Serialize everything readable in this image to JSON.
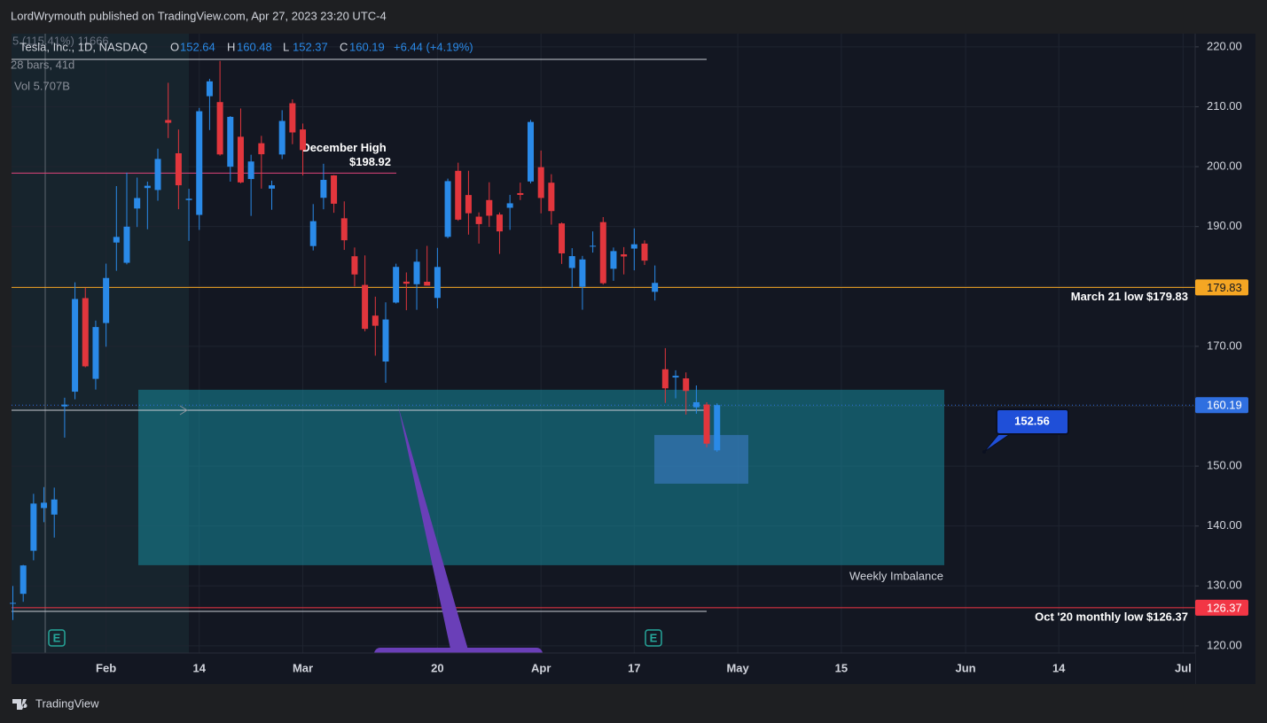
{
  "header": "LordWrymouth published on TradingView.com, Apr 27, 2023 23:20 UTC-4",
  "footer": "TradingView",
  "chart_data": {
    "type": "candlestick",
    "legend": {
      "symbol": "Tesla, Inc., 1D, NASDAQ",
      "fields": [
        {
          "key": "O",
          "value": 152.64
        },
        {
          "key": "H",
          "value": 160.48
        },
        {
          "key": "L",
          "value": 152.37
        },
        {
          "key": "C",
          "value": 160.19
        }
      ],
      "change": "+6.44 (+4.19%)",
      "measure": "5 (115.41%) 11666",
      "bars": "28 bars, 41d",
      "volume": "Vol 5.707B"
    },
    "categories": [
      null,
      null,
      null,
      null,
      null,
      null,
      null,
      null,
      null,
      "Feb",
      null,
      null,
      null,
      null,
      null,
      null,
      null,
      null,
      "14",
      null,
      null,
      null,
      null,
      null,
      null,
      null,
      null,
      null,
      "Mar",
      null,
      null,
      null,
      null,
      null,
      null,
      null,
      null,
      null,
      null,
      null,
      null,
      "20",
      null,
      null,
      null,
      null,
      null,
      null,
      null,
      null,
      null,
      "Apr",
      null,
      null,
      null,
      null,
      null,
      null,
      null,
      null,
      "17",
      null,
      null,
      null,
      null,
      null,
      null,
      null,
      null,
      null,
      "May",
      null,
      null,
      null,
      null,
      null,
      null,
      null,
      null,
      null,
      "15",
      null,
      null,
      null,
      null,
      null,
      null,
      null,
      null,
      null,
      null,
      null,
      "Jun",
      null,
      null,
      null,
      null,
      null,
      null,
      null,
      null,
      "14",
      null,
      null,
      null,
      null,
      null,
      null,
      null,
      null,
      null,
      null,
      null,
      "Jul",
      null
    ],
    "open": [
      127.13,
      128.68,
      135.87,
      143.0,
      141.91,
      159.97,
      162.43,
      178.05,
      164.57,
      173.89,
      187.33,
      183.95,
      193.01,
      196.43,
      196.1,
      207.78,
      202.23,
      194.42,
      191.94,
      211.76,
      210.78,
      199.99,
      204.99,
      197.93,
      203.91,
      196.33,
      202.03,
      210.59,
      206.21,
      186.74,
      194.8,
      198.54,
      191.38,
      185.04,
      180.25,
      175.13,
      167.46,
      177.31,
      180.8,
      180.37,
      180.78,
      178.08,
      188.28,
      199.3,
      195.26,
      191.65,
      194.42,
      192.0,
      193.13,
      195.58,
      197.53,
      199.91,
      197.32,
      190.52,
      183.08,
      179.94,
      186.69,
      190.74,
      182.95,
      185.36,
      186.32,
      187.15,
      179.1,
      166.17,
      164.8,
      164.65,
      159.82,
      160.29,
      152.64,
      null,
      null,
      null,
      null,
      null,
      null,
      null,
      null,
      null,
      null,
      null,
      null,
      null,
      null,
      null,
      null,
      null,
      null,
      null,
      null,
      null,
      null,
      null,
      null,
      null,
      null,
      null,
      null,
      null,
      null,
      null,
      null,
      null,
      null,
      null,
      null,
      null,
      null,
      null,
      null,
      null,
      null,
      null,
      null,
      null,
      null
    ],
    "high": [
      129.99,
      133.51,
      145.38,
      146.5,
      146.41,
      161.42,
      180.68,
      179.77,
      174.3,
      183.81,
      196.75,
      199.0,
      198.17,
      197.5,
      203.0,
      214.0,
      206.2,
      196.3,
      209.82,
      214.66,
      217.65,
      208.44,
      209.71,
      201.99,
      205.14,
      197.67,
      209.42,
      211.23,
      207.2,
      193.75,
      200.48,
      198.6,
      194.2,
      186.5,
      185.18,
      178.29,
      177.35,
      183.8,
      182.34,
      186.22,
      186.77,
      186.44,
      198.0,
      200.66,
      199.31,
      192.36,
      197.39,
      192.35,
      195.29,
      197.33,
      207.79,
      202.69,
      198.74,
      190.68,
      186.39,
      185.1,
      189.19,
      191.58,
      186.5,
      186.57,
      189.69,
      187.69,
      183.5,
      169.7,
      166.0,
      165.65,
      163.47,
      160.67,
      160.48,
      null,
      null,
      null,
      null,
      null,
      null,
      null,
      null,
      null,
      null,
      null,
      null,
      null,
      null,
      null,
      null,
      null,
      null,
      null,
      null,
      null,
      null,
      null,
      null,
      null,
      null,
      null,
      null,
      null,
      null,
      null,
      null,
      null,
      null,
      null,
      null,
      null,
      null,
      null,
      null,
      null,
      null,
      null,
      null,
      null,
      null
    ],
    "low": [
      124.31,
      127.35,
      134.27,
      140.64,
      138.07,
      154.76,
      161.17,
      166.5,
      162.78,
      169.93,
      182.61,
      183.69,
      189.92,
      189.55,
      194.31,
      204.77,
      192.89,
      187.61,
      189.44,
      206.11,
      201.84,
      197.5,
      197.22,
      191.78,
      196.33,
      192.8,
      201.26,
      203.75,
      198.52,
      186.01,
      192.88,
      192.3,
      186.1,
      180.0,
      172.51,
      168.44,
      163.91,
      177.14,
      176.03,
      176.1,
      180.32,
      176.35,
      188.04,
      190.95,
      188.65,
      187.15,
      189.94,
      185.43,
      189.44,
      194.42,
      197.2,
      192.2,
      190.32,
      183.76,
      179.74,
      176.11,
      185.65,
      180.31,
      180.94,
      182.01,
      182.69,
      183.58,
      177.65,
      160.56,
      161.32,
      158.61,
      158.75,
      153.14,
      152.37,
      null,
      null,
      null,
      null,
      null,
      null,
      null,
      null,
      null,
      null,
      null,
      null,
      null,
      null,
      null,
      null,
      null,
      null,
      null,
      null,
      null,
      null,
      null,
      null,
      null,
      null,
      null,
      null,
      null,
      null,
      null,
      null,
      null,
      null,
      null,
      null,
      null,
      null,
      null,
      null,
      null,
      null,
      null,
      null,
      null,
      null
    ],
    "close": [
      127.17,
      133.42,
      143.75,
      143.89,
      144.43,
      160.27,
      177.9,
      166.66,
      173.22,
      181.41,
      188.27,
      189.98,
      194.76,
      196.81,
      201.29,
      207.32,
      196.89,
      194.64,
      209.25,
      214.24,
      202.04,
      208.31,
      197.37,
      200.86,
      202.07,
      196.88,
      207.63,
      205.71,
      202.77,
      190.9,
      197.79,
      193.81,
      187.71,
      182.0,
      172.92,
      173.44,
      174.48,
      183.26,
      180.45,
      184.13,
      180.13,
      183.25,
      197.58,
      191.15,
      192.22,
      190.41,
      191.81,
      189.19,
      193.88,
      195.28,
      207.46,
      194.77,
      192.58,
      185.52,
      185.06,
      184.51,
      186.79,
      180.54,
      185.9,
      185.0,
      187.04,
      184.31,
      180.59,
      162.99,
      165.08,
      162.55,
      160.67,
      153.75,
      160.19,
      null,
      null,
      null,
      null,
      null,
      null,
      null,
      null,
      null,
      null,
      null,
      null,
      null,
      null,
      null,
      null,
      null,
      null,
      null,
      null,
      null,
      null,
      null,
      null,
      null,
      null,
      null,
      null,
      null,
      null,
      null,
      null,
      null,
      null,
      null,
      null,
      null,
      null,
      null,
      null,
      null,
      null,
      null,
      null,
      null,
      null
    ],
    "up_color": "#2a8ae8",
    "down_color": "#e2363d",
    "ylim": [
      118.8,
      222.2
    ],
    "yticks": [
      {
        "value": 120,
        "label": "120.00"
      },
      {
        "value": 130,
        "label": "130.00"
      },
      {
        "value": 140,
        "label": "140.00"
      },
      {
        "value": 150,
        "label": "150.00"
      },
      {
        "value": 160,
        "label": "160.00"
      },
      {
        "value": 170,
        "label": "170.00"
      },
      {
        "value": 180,
        "label": "180.00"
      },
      {
        "value": 190,
        "label": "190.00"
      },
      {
        "value": 200,
        "label": "200.00"
      },
      {
        "value": 210,
        "label": "210.00"
      },
      {
        "value": 220,
        "label": "220.00"
      }
    ],
    "grid": true,
    "levels": [
      {
        "value": 198.92,
        "color": "#e0457b",
        "label": "December High",
        "sublabel": "$198.92"
      },
      {
        "value": 179.83,
        "color": "#f5a623",
        "label": "March 21 low $179.83"
      },
      {
        "value": 160.19,
        "color": "#2f6fe0"
      },
      {
        "value": 126.37,
        "color": "#f23645",
        "label": "Oct '20 monthly low $126.37"
      }
    ],
    "zones": [
      {
        "top": 162.75,
        "bottom": 133.46,
        "color": "#16899a",
        "label": "Weekly Imbalance"
      },
      {
        "top": 155.2,
        "bottom": 147.07,
        "color": "#3f7fd0"
      }
    ],
    "callout": "152.56",
    "earnings_marker": "E"
  }
}
